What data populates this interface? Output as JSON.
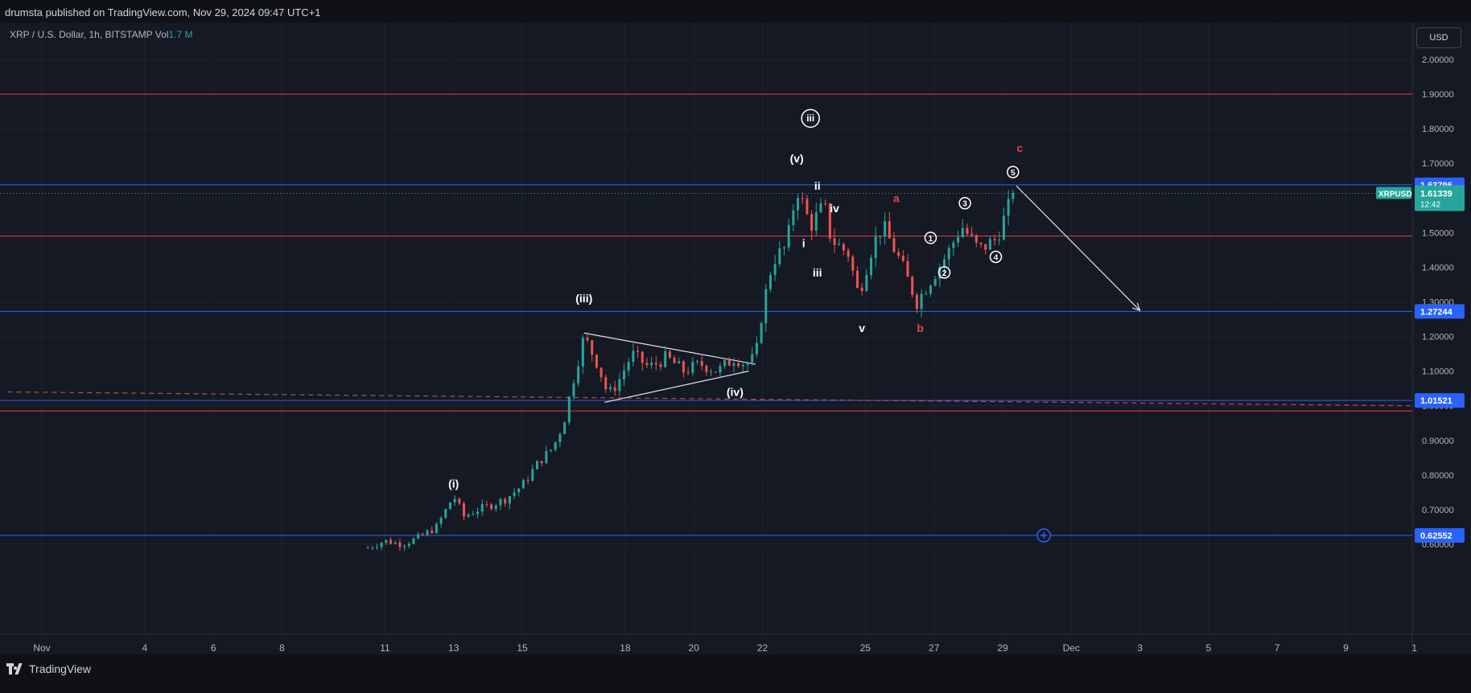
{
  "header": {
    "published": "drumsta published on TradingView.com, Nov 29, 2024 09:47 UTC+1"
  },
  "legend": {
    "symbol": "XRP / U.S. Dollar, 1h, BITSTAMP",
    "vol_label": "Vol",
    "vol_value": "1.7 M"
  },
  "currency_button": "USD",
  "footer": {
    "brand": "TradingView"
  },
  "colors": {
    "background": "#151924",
    "up": "#26a69a",
    "down": "#ef5350",
    "red_line": "#e5414a",
    "blue_line": "#2962ff",
    "accent_label": "#26a69a"
  },
  "chart_data": {
    "type": "candlestick",
    "symbol": "XRPUSD",
    "timeframe": "1h",
    "ylim": [
      0.6,
      2.05
    ],
    "y_ticks": [
      "2.00000",
      "1.90000",
      "1.80000",
      "1.70000",
      "1.60000",
      "1.50000",
      "1.40000",
      "1.30000",
      "1.20000",
      "1.10000",
      "1.00000",
      "0.90000",
      "0.80000",
      "0.70000",
      "0.60000"
    ],
    "x_ticks": [
      "Nov",
      "4",
      "6",
      "8",
      "11",
      "13",
      "15",
      "18",
      "20",
      "22",
      "25",
      "27",
      "29",
      "Dec",
      "3",
      "5",
      "7",
      "9",
      "1"
    ],
    "x_tick_days": [
      1,
      4,
      6,
      8,
      11,
      13,
      15,
      18,
      20,
      22,
      25,
      27,
      29,
      31,
      33,
      35,
      37,
      39,
      41
    ],
    "horizontal_lines": [
      {
        "price": 1.9,
        "color": "red"
      },
      {
        "price": 1.63796,
        "color": "blue",
        "label": "1.63796"
      },
      {
        "price": 1.49,
        "color": "red"
      },
      {
        "price": 1.27244,
        "color": "blue",
        "label": "1.27244"
      },
      {
        "price": 1.01521,
        "color": "blue",
        "label": "1.01521"
      },
      {
        "price": 0.985,
        "color": "red"
      },
      {
        "price": 0.62552,
        "color": "blue",
        "label": "0.62552"
      }
    ],
    "current_price": {
      "symbol": "XRPUSD",
      "price": "1.61339",
      "countdown": "12:42"
    },
    "price_path": [
      [
        10.5,
        0.59
      ],
      [
        11.0,
        0.61
      ],
      [
        11.5,
        0.6
      ],
      [
        12.0,
        0.62
      ],
      [
        12.5,
        0.65
      ],
      [
        13.0,
        0.74
      ],
      [
        13.3,
        0.68
      ],
      [
        13.7,
        0.7
      ],
      [
        14.0,
        0.71
      ],
      [
        14.5,
        0.73
      ],
      [
        15.0,
        0.77
      ],
      [
        15.5,
        0.84
      ],
      [
        15.9,
        0.88
      ],
      [
        16.2,
        0.95
      ],
      [
        16.5,
        1.08
      ],
      [
        16.8,
        1.2
      ],
      [
        17.2,
        1.12
      ],
      [
        17.5,
        1.03
      ],
      [
        17.8,
        1.07
      ],
      [
        18.2,
        1.15
      ],
      [
        18.7,
        1.11
      ],
      [
        19.2,
        1.14
      ],
      [
        19.7,
        1.1
      ],
      [
        20.2,
        1.12
      ],
      [
        20.7,
        1.1
      ],
      [
        21.2,
        1.14
      ],
      [
        21.5,
        1.12
      ],
      [
        21.8,
        1.14
      ],
      [
        22.0,
        1.28
      ],
      [
        22.3,
        1.42
      ],
      [
        22.7,
        1.46
      ],
      [
        23.0,
        1.63
      ],
      [
        23.4,
        1.52
      ],
      [
        23.8,
        1.58
      ],
      [
        24.0,
        1.48
      ],
      [
        24.5,
        1.44
      ],
      [
        24.8,
        1.32
      ],
      [
        25.2,
        1.46
      ],
      [
        25.5,
        1.52
      ],
      [
        26.0,
        1.42
      ],
      [
        26.5,
        1.3
      ],
      [
        27.0,
        1.38
      ],
      [
        27.4,
        1.44
      ],
      [
        27.8,
        1.52
      ],
      [
        28.3,
        1.45
      ],
      [
        28.8,
        1.48
      ],
      [
        29.2,
        1.58
      ],
      [
        29.3,
        1.63
      ]
    ],
    "annotations": [
      {
        "text": "(i)",
        "day": 13.0,
        "price": 0.775,
        "color": "white"
      },
      {
        "text": "(iii)",
        "day": 16.8,
        "price": 1.31,
        "color": "white"
      },
      {
        "text": "(iv)",
        "day": 21.2,
        "price": 1.04,
        "color": "white"
      },
      {
        "text": "(v)",
        "day": 23.0,
        "price": 1.715,
        "color": "white"
      },
      {
        "text": "iii",
        "day": 23.4,
        "price": 1.83,
        "color": "white",
        "circled": true
      },
      {
        "text": "ii",
        "day": 23.6,
        "price": 1.635,
        "color": "white"
      },
      {
        "text": "iv",
        "day": 24.1,
        "price": 1.57,
        "color": "white"
      },
      {
        "text": "i",
        "day": 23.2,
        "price": 1.47,
        "color": "white"
      },
      {
        "text": "iii",
        "day": 23.6,
        "price": 1.385,
        "color": "white"
      },
      {
        "text": "v",
        "day": 24.9,
        "price": 1.225,
        "color": "white"
      },
      {
        "text": "a",
        "day": 25.9,
        "price": 1.6,
        "color": "red"
      },
      {
        "text": "b",
        "day": 26.6,
        "price": 1.225,
        "color": "red"
      },
      {
        "text": "c",
        "day": 29.5,
        "price": 1.745,
        "color": "red"
      },
      {
        "text": "1",
        "day": 26.9,
        "price": 1.485,
        "color": "white",
        "circled": true
      },
      {
        "text": "2",
        "day": 27.3,
        "price": 1.385,
        "color": "white",
        "circled": true
      },
      {
        "text": "3",
        "day": 27.9,
        "price": 1.585,
        "color": "white",
        "circled": true
      },
      {
        "text": "4",
        "day": 28.8,
        "price": 1.43,
        "color": "white",
        "circled": true
      },
      {
        "text": "5",
        "day": 29.3,
        "price": 1.675,
        "color": "white",
        "circled": true
      }
    ],
    "trendlines": [
      {
        "from": [
          16.8,
          1.21
        ],
        "to": [
          21.8,
          1.12
        ]
      },
      {
        "from": [
          17.4,
          1.01
        ],
        "to": [
          21.6,
          1.1
        ]
      },
      {
        "from": [
          29.4,
          1.635
        ],
        "to": [
          33.0,
          1.275
        ],
        "arrow": true
      },
      {
        "from": [
          0,
          1.04
        ],
        "to": [
          41,
          1.0
        ],
        "dashed": true
      }
    ]
  }
}
